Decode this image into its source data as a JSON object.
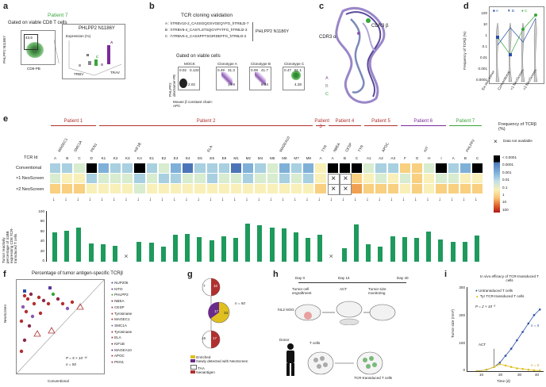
{
  "panels": {
    "a": {
      "label": "a",
      "patient": "Patient 7",
      "gate_title": "Gated on viable CD8 T cells",
      "ylabel": "PHLPP2 N1186Y",
      "xlabel": "CD8-PB",
      "gate_value": "43.6",
      "inset_title": "PHLPP2 N1186Y",
      "inset_expr": "Expression (%)",
      "clones": [
        "A",
        "B",
        "C"
      ],
      "trbv_left": "TRBV",
      "trbv_right": "TRAV"
    },
    "b": {
      "label": "b",
      "title": "TCR cloning validation",
      "clone_lines": [
        "A : hTRBV10-2_CASSGQGSVGEQYFG_hTRBJ2-7",
        "B : hTRBV6-4_CASTLSTSQGYPYTFG_hTRBJ2-3",
        "C : hTRBV6-4_CASSPFTSGIRDEFFG_hTRBJ2-2"
      ],
      "side_label": "PHLPP2 N1186Y",
      "gate_title": "Gated on viable cells",
      "ylabel": "PHLPP2 dextramer-PE",
      "xlabel": "Mouse β constant chain-APC",
      "plots": [
        {
          "name": "MOCK",
          "tl": "0.02",
          "tr": "0.133",
          "bl": "97.8",
          "br": "2.02"
        },
        {
          "name": "Clonotype A",
          "tl": "0.49",
          "tr": "31.3",
          "bl": "53.3",
          "br": "14.9"
        },
        {
          "name": "Clonotype B",
          "tl": "0.08",
          "tr": "41.7",
          "bl": "51.9",
          "br": "6.34"
        },
        {
          "name": "Clonotype C",
          "tl": "0.47",
          "tr": "81.1",
          "bl": "14.1",
          "br": "4.28"
        }
      ]
    },
    "c": {
      "label": "c",
      "cdr3a": "CDR3 α",
      "cdr3b": "CDR3 β",
      "legend": [
        "A",
        "B",
        "C"
      ]
    },
    "d": {
      "label": "d",
      "legend": [
        "A",
        "B",
        "C"
      ],
      "ylabel": "Frequency of TCRβ (%)",
      "yticks": [
        "100",
        "10",
        "1",
        "0.1",
        "0.01",
        "0.001",
        "0.0001"
      ],
      "xticks": [
        "Ex vivo tumor",
        "Conventional",
        "×1 NeoScreen",
        "×2 NeoScreen"
      ]
    },
    "e": {
      "label": "e",
      "patients": [
        {
          "name": "Patient 1",
          "genes": [
            "MAGEC1",
            "SMC1A",
            "PKN1"
          ],
          "cols": [
            "A",
            "B",
            "C",
            "D"
          ]
        },
        {
          "name": "Patient 2",
          "genes": [
            "KIF1B",
            "ELA",
            "MAGEA10"
          ],
          "cols": [
            "K1",
            "K2",
            "K3",
            "K4",
            "E1",
            "E2",
            "E3",
            "E4",
            "E5",
            "E6",
            "E9",
            "M1",
            "M2",
            "M4",
            "M5",
            "M6",
            "M7",
            "M9"
          ]
        },
        {
          "name": "Patient 3",
          "genes": [
            "TYR"
          ],
          "cols": [
            "A"
          ]
        },
        {
          "name": "Patient 4",
          "genes": [
            "NBEA",
            "CESP",
            "TYR"
          ],
          "cols": [
            "A",
            "B",
            "C"
          ]
        },
        {
          "name": "Patient 5",
          "genes": [
            "APOC"
          ],
          "cols": [
            "A1",
            "A2",
            "A3"
          ]
        },
        {
          "name": "Patient 6",
          "genes": [
            "KIT"
          ],
          "cols": [
            "F",
            "G",
            "H",
            "I"
          ]
        },
        {
          "name": "Patient 7",
          "genes": [
            "PHLPP2"
          ],
          "cols": [
            "A",
            "B",
            "C"
          ]
        }
      ],
      "row_header": "TCR Id",
      "rows": [
        "Conventional",
        "×1 NeoScreen",
        "×2 NeoScreen"
      ],
      "legend_title": "Frequency of TCRβ (%)",
      "legend_na": "Data not available",
      "legend_levels": [
        "< 0.0001",
        "0.0001",
        "0.001",
        "0.01",
        "0.1",
        "1",
        "10",
        "100"
      ],
      "bar_ylabel": "Tumor reactivity percentage of 41BB expressing CD8 TCR-transduced T cells",
      "bar_yticks": [
        "100",
        "80",
        "60",
        "40",
        "20",
        "0"
      ]
    },
    "f": {
      "label": "f",
      "title": "Percentage of tumor antigen-specific TCRβ",
      "ylabel": "NeoScreen",
      "xlabel": "Conventional",
      "stats": "P = 5 × 10⁻¹⁵",
      "n": "n = 50",
      "legend": [
        "NUP205",
        "KITD",
        "PHLPP2",
        "NBEA",
        "CESP",
        "Tyrosinase",
        "MAGEC1",
        "SMC1A",
        "Tyrosinase",
        "ELA",
        "KIF1B",
        "MAGEA10",
        "APOC",
        "PKN1"
      ]
    },
    "g": {
      "label": "g",
      "n": "n = 50",
      "top": {
        "left": "7",
        "right": "10"
      },
      "mid": {
        "left": "17",
        "right": "33"
      },
      "bot": {
        "left": "16",
        "right": "17"
      },
      "legend_enriched": "Enriched",
      "legend_new": "Newly detected",
      "legend_with": "with NeoScreen",
      "legend_taa": "TAA",
      "legend_neo": "Neoantigen"
    },
    "h": {
      "label": "h",
      "timeline": [
        "Day 0",
        "Day 14",
        "Day 40"
      ],
      "engraft": "Tumor cell engraftment",
      "act": "ACT",
      "monitor": "Tumor size monitoring",
      "mouse": "hIL2 NOG",
      "donor": "Donor",
      "tcells": "T cells",
      "transduced": "TCR-transduced T cells"
    },
    "i": {
      "label": "i",
      "title": "In vivo efficacy of TCR-transduced T cells",
      "legend": [
        "Untransduced T cells",
        "Tyr TCR-transduced T cells"
      ],
      "stats": "P = 2 × 10⁻⁵",
      "n1": "n = 5",
      "n2": "n = 5",
      "act": "ACT",
      "ylabel": "Tumor size (mm²)",
      "xlabel": "Time (d)",
      "yticks": [
        "300",
        "200",
        "100",
        "0"
      ],
      "xticks": [
        "10",
        "20",
        "30",
        "40"
      ]
    }
  },
  "colors": {
    "green": "#3aa53a",
    "red": "#b03030",
    "purple": "#6a2a8a",
    "bar": "#1e9a5c",
    "blue": "#2b4fa8"
  },
  "chart_data": [
    {
      "type": "heatmap",
      "rows": [
        "Conventional",
        "×1 NeoScreen",
        "×2 NeoScreen"
      ],
      "columns": [
        "A",
        "B",
        "C",
        "D",
        "K1",
        "K2",
        "K3",
        "K4",
        "E1",
        "E2",
        "E3",
        "E4",
        "E5",
        "E6",
        "E9",
        "M1",
        "M2",
        "M4",
        "M5",
        "M6",
        "M7",
        "M9",
        "A",
        "A",
        "B",
        "C",
        "A1",
        "A2",
        "A3",
        "F",
        "G",
        "H",
        "I",
        "A",
        "B",
        "C"
      ],
      "levels": [
        [
          3,
          3,
          4,
          0,
          2,
          3,
          3,
          0,
          3,
          4,
          2,
          1,
          3,
          3,
          3,
          1,
          2,
          3,
          4,
          2,
          3,
          2,
          5,
          0,
          0,
          0,
          4,
          3,
          3,
          6,
          6,
          4,
          0,
          3,
          2,
          0
        ],
        [
          4,
          5,
          5,
          3,
          4,
          4,
          4,
          3,
          4,
          3,
          3,
          4,
          4,
          3,
          4,
          4,
          3,
          4,
          4,
          3,
          4,
          3,
          5,
          9,
          9,
          6,
          5,
          4,
          5,
          4,
          6,
          5,
          4,
          4,
          5,
          5
        ],
        [
          6,
          6,
          6,
          5,
          5,
          5,
          5,
          4,
          5,
          5,
          5,
          5,
          5,
          5,
          5,
          5,
          5,
          5,
          5,
          5,
          5,
          5,
          6,
          9,
          9,
          7,
          6,
          6,
          6,
          5,
          6,
          5,
          6,
          6,
          6,
          6
        ]
      ]
    },
    {
      "type": "bar",
      "categories": [
        "A",
        "B",
        "C",
        "D",
        "K1",
        "K2",
        "K3",
        "K4",
        "E1",
        "E2",
        "E3",
        "E4",
        "E5",
        "E6",
        "E9",
        "M1",
        "M2",
        "M4",
        "M5",
        "M6",
        "M7",
        "M9",
        "A",
        "A",
        "B",
        "C",
        "A1",
        "A2",
        "A3",
        "F",
        "G",
        "H",
        "I",
        "A",
        "B",
        "C"
      ],
      "values": [
        60,
        63,
        70,
        37,
        36,
        33,
        0,
        40,
        38,
        30,
        55,
        57,
        50,
        43,
        52,
        48,
        78,
        75,
        70,
        68,
        60,
        48,
        55,
        0,
        28,
        76,
        35,
        30,
        52,
        50,
        49,
        62,
        45,
        40,
        40,
        53
      ],
      "ylabel": "Tumor reactivity percentage of 41BB expressing CD8 TCR-transduced T cells",
      "ylim": [
        0,
        100
      ]
    },
    {
      "type": "line",
      "x": [
        5,
        10,
        14,
        17,
        20,
        23,
        26,
        29,
        32,
        35,
        38
      ],
      "series": [
        {
          "name": "Untransduced T cells",
          "values": [
            0,
            5,
            15,
            30,
            55,
            80,
            110,
            140,
            170,
            200,
            220
          ]
        },
        {
          "name": "Tyr TCR-transduced T cells",
          "values": [
            0,
            5,
            15,
            25,
            20,
            15,
            10,
            8,
            5,
            3,
            2
          ]
        }
      ],
      "xlabel": "Time (d)",
      "ylabel": "Tumor size (mm²)",
      "ylim": [
        0,
        300
      ]
    }
  ]
}
